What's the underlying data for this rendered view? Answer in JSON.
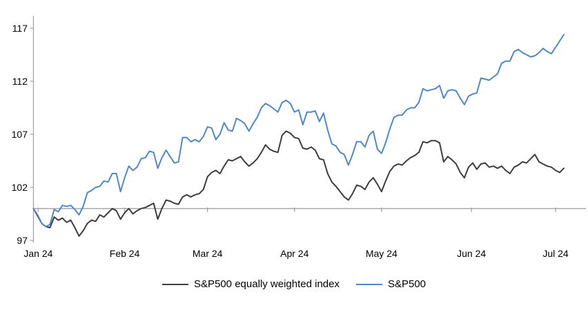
{
  "chart_data": {
    "type": "line",
    "title": "",
    "x_axis": {
      "tick_labels": [
        "Jan 24",
        "Feb 24",
        "Mar 24",
        "Apr 24",
        "May 24",
        "Jun 24",
        "Jul 24"
      ],
      "tick_indices": [
        1.15,
        22,
        42,
        63,
        84,
        105.7,
        126
      ]
    },
    "y_axis": {
      "ticks": [
        97,
        102,
        107,
        112,
        117
      ],
      "min": 97,
      "max": 117,
      "baseline": 100
    },
    "grid": "off",
    "legend_position": "bottom",
    "series": [
      {
        "name": "S&P500 equally weighted index",
        "color": "#3d3d3d",
        "values": [
          100,
          99.3,
          98.6,
          98.3,
          98.2,
          99.2,
          98.9,
          99.1,
          98.7,
          98.9,
          98.2,
          97.4,
          97.9,
          98.6,
          98.9,
          98.8,
          99.4,
          99.2,
          99.6,
          100,
          99.8,
          99,
          99.6,
          100,
          99.5,
          99.8,
          100,
          100.1,
          100.3,
          100.5,
          99,
          100,
          100.8,
          100.7,
          100.5,
          100.4,
          101.1,
          101.3,
          101.1,
          101.3,
          101.4,
          101.8,
          103,
          103.4,
          103.6,
          103.3,
          104,
          104.6,
          104.5,
          104.7,
          104.9,
          104.4,
          104,
          104.3,
          104.7,
          105.3,
          106,
          105.6,
          105.4,
          105.3,
          106.9,
          107.3,
          107.1,
          106.7,
          106.6,
          105.7,
          105.6,
          105.8,
          105.5,
          104.7,
          104.6,
          103.3,
          102.5,
          102.1,
          101.6,
          101.1,
          100.8,
          101.4,
          102.2,
          102.1,
          101.8,
          102.5,
          102.9,
          102.3,
          101.6,
          102.6,
          103.5,
          104,
          104.2,
          104.1,
          104.5,
          104.8,
          105,
          105.3,
          106.3,
          106.2,
          106.4,
          106.4,
          106.2,
          104.4,
          104.9,
          104.6,
          104.2,
          103.4,
          102.9,
          103.9,
          104.3,
          103.7,
          104.2,
          104.3,
          103.9,
          104,
          103.8,
          104,
          103.6,
          103.3,
          103.9,
          104.1,
          104.4,
          104.3,
          104.7,
          105.1,
          104.4,
          104.2,
          104,
          103.9,
          103.6,
          103.4,
          103.8
        ]
      },
      {
        "name": "S&P500",
        "color": "#5287c5",
        "values": [
          100,
          99.4,
          98.6,
          98.3,
          98.5,
          99.9,
          99.7,
          100.3,
          100.2,
          100.3,
          99.9,
          99.4,
          100.2,
          101.5,
          101.7,
          102,
          102.1,
          102.6,
          102.5,
          103.3,
          103.3,
          101.6,
          102.9,
          104,
          103.6,
          103.9,
          104.7,
          104.8,
          105.4,
          105.3,
          103.8,
          104.8,
          105.5,
          104.9,
          104.3,
          104.4,
          106.7,
          106.7,
          106.3,
          106.5,
          106.3,
          106.8,
          107.7,
          107.6,
          106.5,
          107,
          108.1,
          107.4,
          107.3,
          108.5,
          108.3,
          108,
          107.3,
          108,
          108.6,
          109.5,
          109.9,
          109.7,
          109.4,
          109.1,
          110,
          110.2,
          109.9,
          109.1,
          109.3,
          107.9,
          109.1,
          109.1,
          109.2,
          108.2,
          109,
          107.4,
          106.1,
          105.9,
          105.3,
          105.1,
          104.1,
          105.1,
          106.3,
          106.3,
          105.8,
          106.9,
          107.3,
          105.6,
          105.2,
          106.2,
          107.5,
          108.6,
          108.8,
          108.8,
          109.3,
          109.5,
          109.5,
          110,
          111.3,
          111.1,
          111.2,
          111.3,
          111.6,
          110.4,
          111.1,
          111.2,
          111.1,
          110.4,
          109.8,
          110.6,
          110.8,
          110.9,
          112.3,
          112.2,
          112.1,
          112.4,
          112.7,
          113.7,
          113.9,
          113.9,
          114.8,
          115,
          114.7,
          114.5,
          114.3,
          114.4,
          114.7,
          115.1,
          114.8,
          114.6,
          115.2,
          115.8,
          116.4
        ]
      }
    ]
  },
  "legend": {
    "items": [
      {
        "label": "S&P500 equally weighted index",
        "color": "#3d3d3d"
      },
      {
        "label": "S&P500",
        "color": "#5287c5"
      }
    ]
  },
  "colors": {
    "axis": "#a3a3a3",
    "tick_text": "#000000",
    "background": "#ffffff"
  }
}
